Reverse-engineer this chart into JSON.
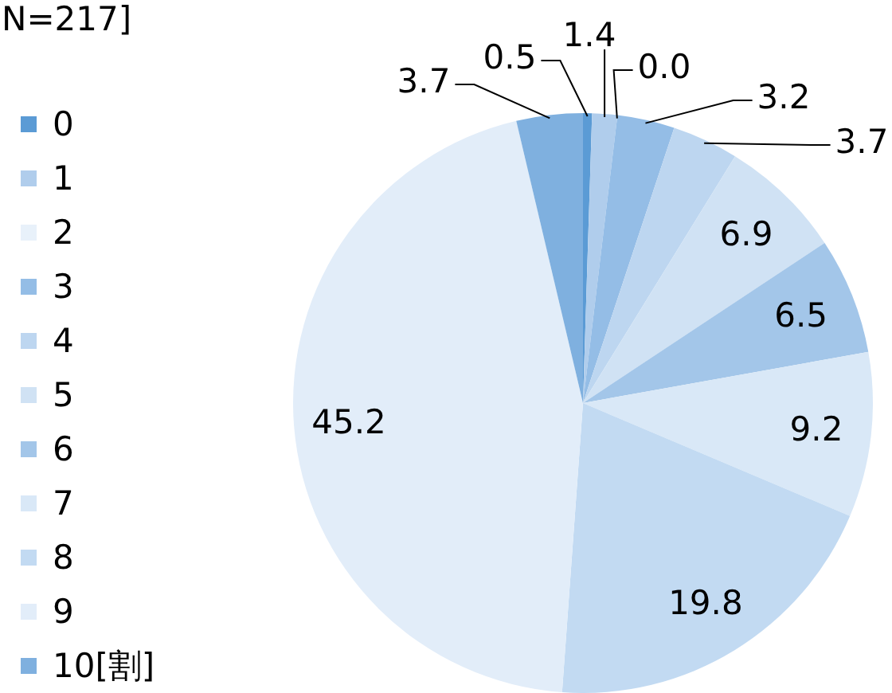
{
  "chart_data": {
    "type": "pie",
    "title": "N=217]",
    "categories": [
      "0",
      "1",
      "2",
      "3",
      "4",
      "5",
      "6",
      "7",
      "8",
      "9",
      "10[割]"
    ],
    "values": [
      0.5,
      1.4,
      0.0,
      3.2,
      3.7,
      6.9,
      6.5,
      9.2,
      19.8,
      45.2,
      3.7
    ],
    "colors": [
      "#5b9bd5",
      "#b0cdec",
      "#e8f1fa",
      "#94bde6",
      "#bdd6f0",
      "#d0e2f4",
      "#a3c6e9",
      "#d9e8f7",
      "#c2daf2",
      "#e2edf9",
      "#7fb0df"
    ],
    "value_labels": [
      "0.5",
      "1.4",
      "0.0",
      "3.2",
      "3.7",
      "6.9",
      "6.5",
      "9.2",
      "19.8",
      "45.2",
      "3.7"
    ],
    "legend": "left"
  }
}
